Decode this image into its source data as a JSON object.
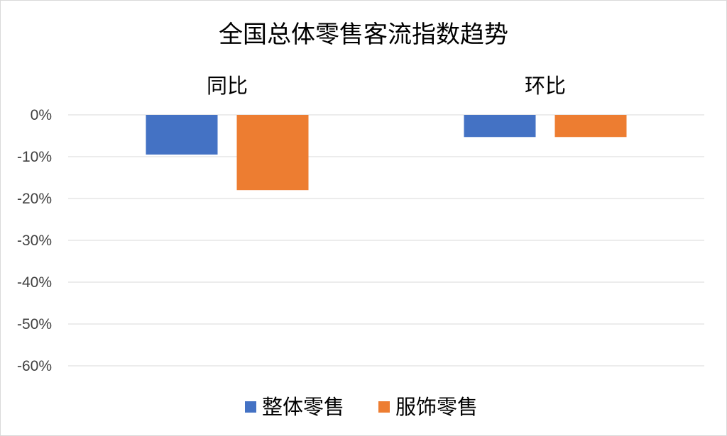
{
  "chart_data": {
    "type": "bar",
    "title": "全国总体零售客流指数趋势",
    "categories": [
      "同比",
      "环比"
    ],
    "series": [
      {
        "name": "整体零售",
        "values": [
          -9.5,
          -5.3
        ],
        "color": "#4472C4"
      },
      {
        "name": "服饰零售",
        "values": [
          -18.0,
          -5.3
        ],
        "color": "#ED7D31"
      }
    ],
    "ylim": [
      -60,
      0
    ],
    "yticks": [
      0,
      -10,
      -20,
      -30,
      -40,
      -50,
      -60
    ],
    "ytick_labels": [
      "0%",
      "-10%",
      "-20%",
      "-30%",
      "-40%",
      "-50%",
      "-60%"
    ],
    "grid": true,
    "gridline_color": "#d9d9d9",
    "legend_position": "bottom",
    "category_label_position": "top"
  }
}
